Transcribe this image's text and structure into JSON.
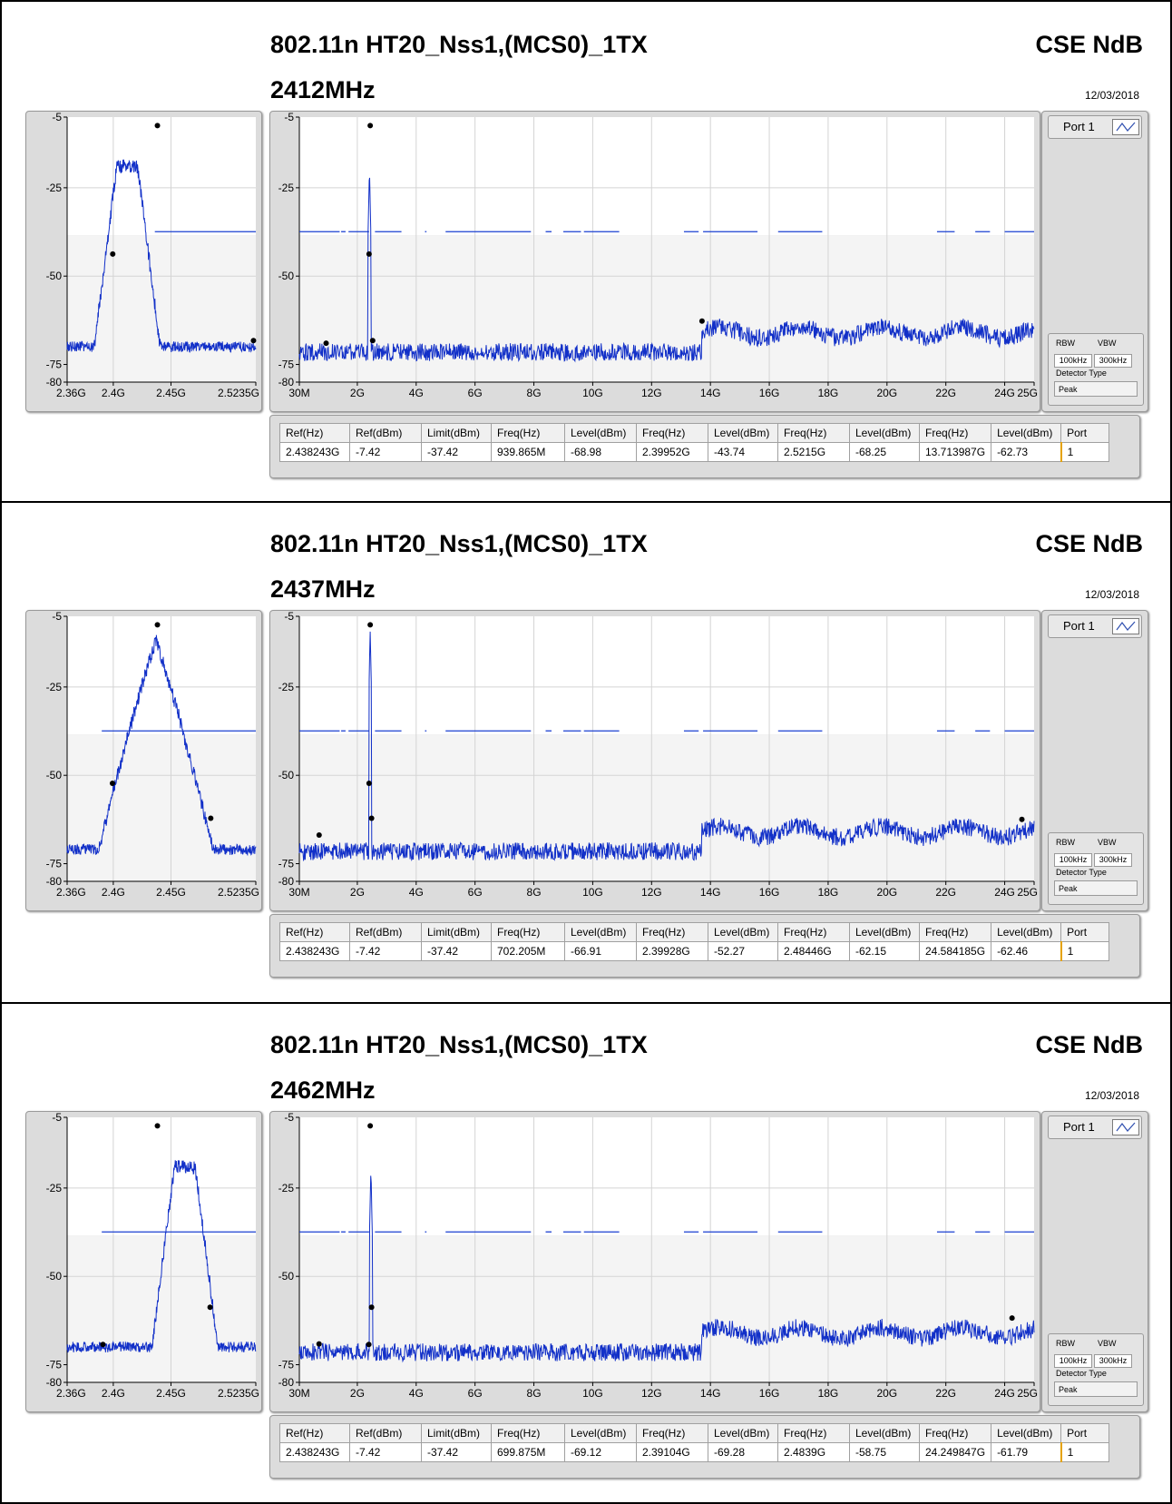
{
  "sections": [
    {
      "title": "802.11n HT20_Nss1,(MCS0)_1TX",
      "freq": "2412MHz",
      "brand": "CSE NdB",
      "date": "12/03/2018"
    },
    {
      "title": "802.11n HT20_Nss1,(MCS0)_1TX",
      "freq": "2437MHz",
      "brand": "CSE NdB",
      "date": "12/03/2018"
    },
    {
      "title": "802.11n HT20_Nss1,(MCS0)_1TX",
      "freq": "2462MHz",
      "brand": "CSE NdB",
      "date": "12/03/2018"
    }
  ],
  "port": {
    "label": "Port 1"
  },
  "rbw_box": {
    "rbw_label": "RBW",
    "vbw_label": "VBW",
    "rbw": "100kHz",
    "vbw": "300kHz",
    "detector_label": "Detector Type",
    "detector": "Peak"
  },
  "table_headers": [
    "Ref(Hz)",
    "Ref(dBm)",
    "Limit(dBm)",
    "Freq(Hz)",
    "Level(dBm)",
    "Freq(Hz)",
    "Level(dBm)",
    "Freq(Hz)",
    "Level(dBm)",
    "Freq(Hz)",
    "Level(dBm)",
    "Port"
  ],
  "table_rows": [
    [
      "2.438243G",
      "-7.42",
      "-37.42",
      "939.865M",
      "-68.98",
      "2.39952G",
      "-43.74",
      "2.5215G",
      "-68.25",
      "13.713987G",
      "-62.73",
      "1"
    ],
    [
      "2.438243G",
      "-7.42",
      "-37.42",
      "702.205M",
      "-66.91",
      "2.39928G",
      "-52.27",
      "2.48446G",
      "-62.15",
      "24.584185G",
      "-62.46",
      "1"
    ],
    [
      "2.438243G",
      "-7.42",
      "-37.42",
      "699.875M",
      "-69.12",
      "2.39104G",
      "-69.28",
      "2.4839G",
      "-58.75",
      "24.249847G",
      "-61.79",
      "1"
    ]
  ],
  "chart_data": [
    {
      "type": "line",
      "name": "left-zoom-2412",
      "xlim": [
        2.36,
        2.5235
      ],
      "ylim": [
        -80,
        -5
      ],
      "xticks": [
        {
          "v": 2.36,
          "l": "2.36G"
        },
        {
          "v": 2.4,
          "l": "2.4G"
        },
        {
          "v": 2.45,
          "l": "2.45G"
        },
        {
          "v": 2.5235,
          "l": "2.5235G"
        }
      ],
      "yticks": [
        {
          "v": -5,
          "l": "-5"
        },
        {
          "v": -25,
          "l": "-25"
        },
        {
          "v": -50,
          "l": "-50"
        },
        {
          "v": -75,
          "l": "-75"
        },
        {
          "v": -80,
          "l": "-80"
        }
      ],
      "limit": {
        "y": -37.42,
        "segments": [
          [
            2.436,
            2.5235
          ]
        ]
      },
      "band": {
        "center": 2.412,
        "peak": -19,
        "floor": -70,
        "halfwidth": 0.009,
        "shape": "box"
      },
      "markers": [
        {
          "x": 2.438243,
          "y": -7.42
        },
        {
          "x": 2.39952,
          "y": -43.74
        },
        {
          "x": 2.5215,
          "y": -68.25
        }
      ]
    },
    {
      "type": "line",
      "name": "main-2412",
      "xlim": [
        0.03,
        25
      ],
      "ylim": [
        -80,
        -5
      ],
      "xticks": [
        {
          "v": 0.03,
          "l": "30M"
        },
        {
          "v": 2,
          "l": "2G"
        },
        {
          "v": 4,
          "l": "4G"
        },
        {
          "v": 6,
          "l": "6G"
        },
        {
          "v": 8,
          "l": "8G"
        },
        {
          "v": 10,
          "l": "10G"
        },
        {
          "v": 12,
          "l": "12G"
        },
        {
          "v": 14,
          "l": "14G"
        },
        {
          "v": 16,
          "l": "16G"
        },
        {
          "v": 18,
          "l": "18G"
        },
        {
          "v": 20,
          "l": "20G"
        },
        {
          "v": 22,
          "l": "22G"
        },
        {
          "v": 24,
          "l": "24G"
        },
        {
          "v": 25,
          "l": "25G"
        }
      ],
      "yticks": [
        {
          "v": -5,
          "l": "-5"
        },
        {
          "v": -25,
          "l": "-25"
        },
        {
          "v": -50,
          "l": "-50"
        },
        {
          "v": -75,
          "l": "-75"
        },
        {
          "v": -80,
          "l": "-80"
        }
      ],
      "limit": {
        "y": -37.42,
        "segments": [
          [
            0.03,
            1.4
          ],
          [
            1.45,
            1.6
          ],
          [
            1.7,
            2.4
          ],
          [
            2.6,
            3.5
          ],
          [
            4.3,
            4.35
          ],
          [
            5.0,
            7.9
          ],
          [
            8.4,
            8.6
          ],
          [
            9.0,
            9.6
          ],
          [
            9.7,
            10.9
          ],
          [
            13.1,
            13.6
          ],
          [
            13.75,
            15.6
          ],
          [
            16.3,
            17.8
          ],
          [
            21.7,
            22.3
          ],
          [
            23.0,
            23.5
          ],
          [
            24.0,
            25.0
          ]
        ]
      },
      "spike": {
        "x": 2.412,
        "peak": -19
      },
      "floor": [
        {
          "x0": 0.03,
          "x1": 13.7,
          "y": -71.5
        },
        {
          "x0": 13.7,
          "x1": 25,
          "y": -66
        }
      ],
      "markers": [
        {
          "x": 2.438243,
          "y": -7.42
        },
        {
          "x": 0.939865,
          "y": -68.98
        },
        {
          "x": 2.39952,
          "y": -43.74
        },
        {
          "x": 2.5215,
          "y": -68.25
        },
        {
          "x": 13.713987,
          "y": -62.73
        }
      ]
    },
    {
      "type": "line",
      "name": "left-zoom-2437",
      "xlim": [
        2.36,
        2.5235
      ],
      "ylim": [
        -80,
        -5
      ],
      "xticks": [
        {
          "v": 2.36,
          "l": "2.36G"
        },
        {
          "v": 2.4,
          "l": "2.4G"
        },
        {
          "v": 2.45,
          "l": "2.45G"
        },
        {
          "v": 2.5235,
          "l": "2.5235G"
        }
      ],
      "yticks": [
        {
          "v": -5,
          "l": "-5"
        },
        {
          "v": -25,
          "l": "-25"
        },
        {
          "v": -50,
          "l": "-50"
        },
        {
          "v": -75,
          "l": "-75"
        },
        {
          "v": -80,
          "l": "-80"
        }
      ],
      "limit": {
        "y": -37.42,
        "segments": [
          [
            2.39,
            2.5235
          ]
        ]
      },
      "band": {
        "center": 2.437,
        "peak": -12,
        "floor": -71,
        "halfwidth": 0.009,
        "shape": "bell"
      },
      "markers": [
        {
          "x": 2.438243,
          "y": -7.42
        },
        {
          "x": 2.39928,
          "y": -52.27
        },
        {
          "x": 2.48446,
          "y": -62.15
        }
      ]
    },
    {
      "type": "line",
      "name": "main-2437",
      "xlim": [
        0.03,
        25
      ],
      "ylim": [
        -80,
        -5
      ],
      "xticks": [
        {
          "v": 0.03,
          "l": "30M"
        },
        {
          "v": 2,
          "l": "2G"
        },
        {
          "v": 4,
          "l": "4G"
        },
        {
          "v": 6,
          "l": "6G"
        },
        {
          "v": 8,
          "l": "8G"
        },
        {
          "v": 10,
          "l": "10G"
        },
        {
          "v": 12,
          "l": "12G"
        },
        {
          "v": 14,
          "l": "14G"
        },
        {
          "v": 16,
          "l": "16G"
        },
        {
          "v": 18,
          "l": "18G"
        },
        {
          "v": 20,
          "l": "20G"
        },
        {
          "v": 22,
          "l": "22G"
        },
        {
          "v": 24,
          "l": "24G"
        },
        {
          "v": 25,
          "l": "25G"
        }
      ],
      "yticks": [
        {
          "v": -5,
          "l": "-5"
        },
        {
          "v": -25,
          "l": "-25"
        },
        {
          "v": -50,
          "l": "-50"
        },
        {
          "v": -75,
          "l": "-75"
        },
        {
          "v": -80,
          "l": "-80"
        }
      ],
      "limit": {
        "y": -37.42,
        "segments": [
          [
            0.03,
            1.4
          ],
          [
            1.45,
            1.6
          ],
          [
            1.7,
            2.4
          ],
          [
            2.6,
            3.5
          ],
          [
            4.3,
            4.35
          ],
          [
            5.0,
            7.9
          ],
          [
            8.4,
            8.6
          ],
          [
            9.0,
            9.6
          ],
          [
            9.7,
            10.9
          ],
          [
            13.1,
            13.6
          ],
          [
            13.75,
            15.6
          ],
          [
            16.3,
            17.8
          ],
          [
            21.7,
            22.3
          ],
          [
            23.0,
            23.5
          ],
          [
            24.0,
            25.0
          ]
        ]
      },
      "spike": {
        "x": 2.437,
        "peak": -9
      },
      "floor": [
        {
          "x0": 0.03,
          "x1": 13.7,
          "y": -71.5
        },
        {
          "x0": 13.7,
          "x1": 25,
          "y": -66
        }
      ],
      "markers": [
        {
          "x": 2.438243,
          "y": -7.42
        },
        {
          "x": 0.702205,
          "y": -66.91
        },
        {
          "x": 2.39928,
          "y": -52.27
        },
        {
          "x": 2.48446,
          "y": -62.15
        },
        {
          "x": 24.584185,
          "y": -62.46
        }
      ]
    },
    {
      "type": "line",
      "name": "left-zoom-2462",
      "xlim": [
        2.36,
        2.5235
      ],
      "ylim": [
        -80,
        -5
      ],
      "xticks": [
        {
          "v": 2.36,
          "l": "2.36G"
        },
        {
          "v": 2.4,
          "l": "2.4G"
        },
        {
          "v": 2.45,
          "l": "2.45G"
        },
        {
          "v": 2.5235,
          "l": "2.5235G"
        }
      ],
      "yticks": [
        {
          "v": -5,
          "l": "-5"
        },
        {
          "v": -25,
          "l": "-25"
        },
        {
          "v": -50,
          "l": "-50"
        },
        {
          "v": -75,
          "l": "-75"
        },
        {
          "v": -80,
          "l": "-80"
        }
      ],
      "limit": {
        "y": -37.42,
        "segments": [
          [
            2.39,
            2.5235
          ]
        ]
      },
      "band": {
        "center": 2.462,
        "peak": -19,
        "floor": -70,
        "halfwidth": 0.009,
        "shape": "box"
      },
      "markers": [
        {
          "x": 2.438243,
          "y": -7.42
        },
        {
          "x": 2.39104,
          "y": -69.28
        },
        {
          "x": 2.4839,
          "y": -58.75
        }
      ]
    },
    {
      "type": "line",
      "name": "main-2462",
      "xlim": [
        0.03,
        25
      ],
      "ylim": [
        -80,
        -5
      ],
      "xticks": [
        {
          "v": 0.03,
          "l": "30M"
        },
        {
          "v": 2,
          "l": "2G"
        },
        {
          "v": 4,
          "l": "4G"
        },
        {
          "v": 6,
          "l": "6G"
        },
        {
          "v": 8,
          "l": "8G"
        },
        {
          "v": 10,
          "l": "10G"
        },
        {
          "v": 12,
          "l": "12G"
        },
        {
          "v": 14,
          "l": "14G"
        },
        {
          "v": 16,
          "l": "16G"
        },
        {
          "v": 18,
          "l": "18G"
        },
        {
          "v": 20,
          "l": "20G"
        },
        {
          "v": 22,
          "l": "22G"
        },
        {
          "v": 24,
          "l": "24G"
        },
        {
          "v": 25,
          "l": "25G"
        }
      ],
      "yticks": [
        {
          "v": -5,
          "l": "-5"
        },
        {
          "v": -25,
          "l": "-25"
        },
        {
          "v": -50,
          "l": "-50"
        },
        {
          "v": -75,
          "l": "-75"
        },
        {
          "v": -80,
          "l": "-80"
        }
      ],
      "limit": {
        "y": -37.42,
        "segments": [
          [
            0.03,
            1.4
          ],
          [
            1.45,
            1.6
          ],
          [
            1.7,
            2.4
          ],
          [
            2.6,
            3.5
          ],
          [
            4.3,
            4.35
          ],
          [
            5.0,
            7.9
          ],
          [
            8.4,
            8.6
          ],
          [
            9.0,
            9.6
          ],
          [
            9.7,
            10.9
          ],
          [
            13.1,
            13.6
          ],
          [
            13.75,
            15.6
          ],
          [
            16.3,
            17.8
          ],
          [
            21.7,
            22.3
          ],
          [
            23.0,
            23.5
          ],
          [
            24.0,
            25.0
          ]
        ]
      },
      "spike": {
        "x": 2.462,
        "peak": -19
      },
      "floor": [
        {
          "x0": 0.03,
          "x1": 13.7,
          "y": -71.5
        },
        {
          "x0": 13.7,
          "x1": 25,
          "y": -66
        }
      ],
      "markers": [
        {
          "x": 2.438243,
          "y": -7.42
        },
        {
          "x": 0.699875,
          "y": -69.12
        },
        {
          "x": 2.39104,
          "y": -69.28
        },
        {
          "x": 2.4839,
          "y": -58.75
        },
        {
          "x": 24.249847,
          "y": -61.79
        }
      ]
    }
  ]
}
